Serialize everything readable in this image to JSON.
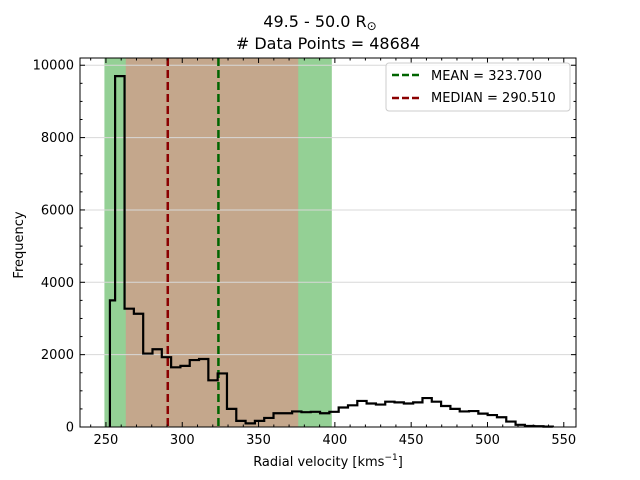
{
  "chart_data": {
    "type": "histogram",
    "title_line1": "49.5 - 50.0 R",
    "title_symbol": "⊙",
    "title_line2": "# Data Points = 48684",
    "xlabel_main": "Radial velocity [kms",
    "xlabel_sup": "−1",
    "xlabel_end": "]",
    "ylabel": "Frequency",
    "xlim": [
      233,
      558
    ],
    "ylim": [
      0,
      10200
    ],
    "x_ticks": [
      250,
      300,
      350,
      400,
      450,
      500,
      550
    ],
    "y_ticks": [
      0,
      2000,
      4000,
      6000,
      8000,
      10000
    ],
    "grid": "horizontal",
    "legend_position": "top-right",
    "bands": [
      {
        "x0": 249,
        "x1": 398,
        "color": "#94d095"
      },
      {
        "x0": 263,
        "x1": 376,
        "color": "#c4a78c"
      }
    ],
    "vlines": [
      {
        "x": 323.7,
        "color": "#006400",
        "label": "MEAN = 323.700"
      },
      {
        "x": 290.51,
        "color": "#8b0000",
        "label": "MEDIAN = 290.510"
      }
    ],
    "step": {
      "edges": [
        252.6,
        256.0,
        262.2,
        268.3,
        274.4,
        280.5,
        286.6,
        292.7,
        298.8,
        304.9,
        311.0,
        317.1,
        323.2,
        329.3,
        335.4,
        341.5,
        347.6,
        353.7,
        359.8,
        365.9,
        372.0,
        378.1,
        384.2,
        390.3,
        396.4,
        402.5,
        408.6,
        414.7,
        420.8,
        426.9,
        433.0,
        439.1,
        445.2,
        451.3,
        457.4,
        463.5,
        469.6,
        475.7,
        481.8,
        487.9,
        494.0,
        500.1,
        506.2,
        512.3,
        518.4,
        524.5,
        530.6,
        536.7,
        542.8
      ],
      "counts": [
        3500,
        9700,
        3270,
        3130,
        2030,
        2150,
        1930,
        1650,
        1690,
        1850,
        1880,
        1290,
        1480,
        500,
        170,
        100,
        170,
        250,
        380,
        380,
        430,
        410,
        420,
        380,
        420,
        540,
        600,
        720,
        650,
        620,
        700,
        680,
        650,
        680,
        800,
        700,
        580,
        500,
        430,
        440,
        370,
        330,
        270,
        150,
        60,
        30,
        20,
        10
      ]
    }
  }
}
